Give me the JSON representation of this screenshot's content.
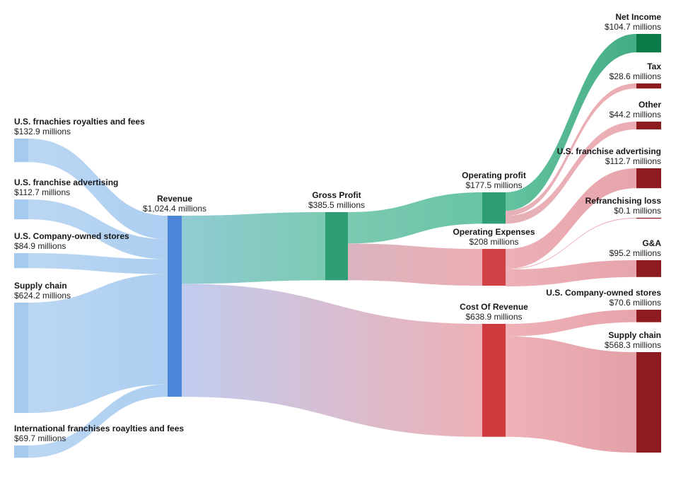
{
  "chart_data": {
    "type": "sankey",
    "unit": "$ millions",
    "background": "#ffffff",
    "text_color": "#18181a",
    "nodes": [
      {
        "id": "us-franchise-royalties",
        "label": "U.S. frnachies royalties and fees",
        "value_label": "$132.9 millions",
        "value": 132.9,
        "column": 0,
        "color": "#a6c9ee"
      },
      {
        "id": "us-franchise-advertising",
        "label": "U.S. franchise advertising",
        "value_label": "$112.7 millions",
        "value": 112.7,
        "column": 0,
        "color": "#a6c9ee"
      },
      {
        "id": "us-company-stores",
        "label": "U.S. Company-owned stores",
        "value_label": "$84.9 millions",
        "value": 84.9,
        "column": 0,
        "color": "#a6c9ee"
      },
      {
        "id": "supply-chain",
        "label": "Supply chain",
        "value_label": "$624.2 millions",
        "value": 624.2,
        "column": 0,
        "color": "#a6c9ee"
      },
      {
        "id": "intl-franchise-royalties",
        "label": "International franchises roaylties and fees",
        "value_label": "$69.7 millions",
        "value": 69.7,
        "column": 0,
        "color": "#a6c9ee"
      },
      {
        "id": "revenue",
        "label": "Revenue",
        "value_label": "$1,024.4 millions",
        "value": 1024.4,
        "column": 1,
        "color": "#4d86d9"
      },
      {
        "id": "gross-profit",
        "label": "Gross Profit",
        "value_label": "$385.5 millions",
        "value": 385.5,
        "column": 2,
        "color": "#2f9e74"
      },
      {
        "id": "operating-profit",
        "label": "Operating profit",
        "value_label": "$177.5 millions",
        "value": 177.5,
        "column": 3,
        "color": "#2f9e74"
      },
      {
        "id": "operating-expenses",
        "label": "Operating Expenses",
        "value_label": "$208 millions",
        "value": 208,
        "column": 3,
        "color": "#d04045"
      },
      {
        "id": "cost-of-revenue",
        "label": "Cost Of Revenue",
        "value_label": "$638.9 millions",
        "value": 638.9,
        "column": 3,
        "color": "#cf3a3f"
      },
      {
        "id": "net-income",
        "label": "Net Income",
        "value_label": "$104.7 millions",
        "value": 104.7,
        "column": 4,
        "color": "#0d7b49"
      },
      {
        "id": "tax",
        "label": "Tax",
        "value_label": "$28.6 millions",
        "value": 28.6,
        "column": 4,
        "color": "#8c1c20"
      },
      {
        "id": "other",
        "label": "Other",
        "value_label": "$44.2 millions",
        "value": 44.2,
        "column": 4,
        "color": "#8c1c20"
      },
      {
        "id": "us-franchise-advertising-out",
        "label": "U.S. franchise advertising",
        "value_label": "$112.7 millions",
        "value": 112.7,
        "column": 4,
        "color": "#8c1c20"
      },
      {
        "id": "refranchising-loss",
        "label": "Refranchising loss",
        "value_label": "$0.1 millions",
        "value": 0.1,
        "column": 4,
        "color": "#8c1c20"
      },
      {
        "id": "ga",
        "label": "G&A",
        "value_label": "$95.2 millions",
        "value": 95.2,
        "column": 4,
        "color": "#8c1c20"
      },
      {
        "id": "us-company-stores-out",
        "label": "U.S. Company-owned stores",
        "value_label": "$70.6 millions",
        "value": 70.6,
        "column": 4,
        "color": "#8c1c20"
      },
      {
        "id": "supply-chain-out",
        "label": "Supply chain",
        "value_label": "$568.3 millions",
        "value": 568.3,
        "column": 4,
        "color": "#8c1c20"
      }
    ],
    "links": [
      {
        "source": "us-franchise-royalties",
        "target": "revenue",
        "value": 132.9,
        "from_color": "#b7d4f2",
        "to_color": "#a9ccf0",
        "opacity": 0.95
      },
      {
        "source": "us-franchise-advertising",
        "target": "revenue",
        "value": 112.7,
        "from_color": "#b7d4f2",
        "to_color": "#a9ccf0",
        "opacity": 0.95
      },
      {
        "source": "us-company-stores",
        "target": "revenue",
        "value": 84.9,
        "from_color": "#b7d4f2",
        "to_color": "#a9ccf0",
        "opacity": 0.95
      },
      {
        "source": "supply-chain",
        "target": "revenue",
        "value": 624.2,
        "from_color": "#b7d4f2",
        "to_color": "#a9ccf0",
        "opacity": 0.95
      },
      {
        "source": "intl-franchise-royalties",
        "target": "revenue",
        "value": 69.7,
        "from_color": "#b7d4f2",
        "to_color": "#a9ccf0",
        "opacity": 0.95
      },
      {
        "source": "revenue",
        "target": "gross-profit",
        "value": 385.5,
        "from_color": "#85c6cf",
        "to_color": "#6ec4aa",
        "opacity": 0.9
      },
      {
        "source": "revenue",
        "target": "cost-of-revenue",
        "value": 638.9,
        "from_color": "#b9c5ec",
        "to_color": "#eaa5ab",
        "opacity": 0.88
      },
      {
        "source": "gross-profit",
        "target": "operating-profit",
        "value": 177.5,
        "from_color": "#6ec4aa",
        "to_color": "#58bd9d",
        "opacity": 0.9
      },
      {
        "source": "gross-profit",
        "target": "operating-expenses",
        "value": 208,
        "from_color": "#d5a9b6",
        "to_color": "#e9a2a9",
        "opacity": 0.88
      },
      {
        "source": "operating-profit",
        "target": "net-income",
        "value": 104.7,
        "from_color": "#54bc96",
        "to_color": "#2fa476",
        "opacity": 0.9
      },
      {
        "source": "operating-profit",
        "target": "tax",
        "value": 28.6,
        "from_color": "#e2a3ab",
        "to_color": "#e89fa6",
        "opacity": 0.85
      },
      {
        "source": "operating-profit",
        "target": "other",
        "value": 44.2,
        "from_color": "#e2a3ab",
        "to_color": "#e89fa6",
        "opacity": 0.85
      },
      {
        "source": "operating-expenses",
        "target": "us-franchise-advertising-out",
        "value": 112.7,
        "from_color": "#e9a2a9",
        "to_color": "#e2949c",
        "opacity": 0.85
      },
      {
        "source": "operating-expenses",
        "target": "refranchising-loss",
        "value": 0.1,
        "from_color": "#e9a2a9",
        "to_color": "#e2949c",
        "opacity": 0.85
      },
      {
        "source": "operating-expenses",
        "target": "ga",
        "value": 95.2,
        "from_color": "#e9a2a9",
        "to_color": "#e2949c",
        "opacity": 0.85
      },
      {
        "source": "cost-of-revenue",
        "target": "us-company-stores-out",
        "value": 70.6,
        "from_color": "#eba4aa",
        "to_color": "#e2949c",
        "opacity": 0.85
      },
      {
        "source": "cost-of-revenue",
        "target": "supply-chain-out",
        "value": 568.3,
        "from_color": "#eba4aa",
        "to_color": "#de9098",
        "opacity": 0.85
      }
    ]
  }
}
